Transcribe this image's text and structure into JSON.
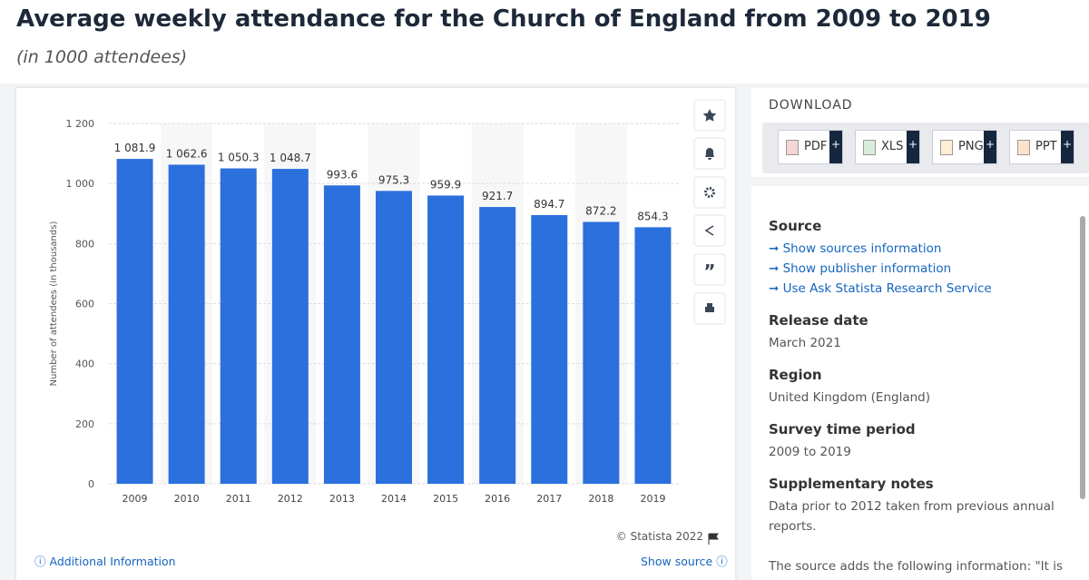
{
  "header": {
    "title": "Average weekly attendance for the Church of England from 2009 to 2019",
    "subtitle": "(in 1000 attendees)"
  },
  "chart_data": {
    "type": "bar",
    "y_label": "Number of attendees (in thousands)",
    "categories": [
      "2009",
      "2010",
      "2011",
      "2012",
      "2013",
      "2014",
      "2015",
      "2016",
      "2017",
      "2018",
      "2019"
    ],
    "values": [
      1081.9,
      1062.6,
      1050.3,
      1048.7,
      993.6,
      975.3,
      959.9,
      921.7,
      894.7,
      872.2,
      854.3
    ],
    "value_labels": [
      "1 081.9",
      "1 062.6",
      "1 050.3",
      "1 048.7",
      "993.6",
      "975.3",
      "959.9",
      "921.7",
      "894.7",
      "872.2",
      "854.3"
    ],
    "color": "#2b70dd",
    "ylim": [
      0,
      1200
    ],
    "yticks": [
      0,
      200,
      400,
      600,
      800,
      {
        "value": 1000,
        "label": "1 000"
      },
      {
        "value": 1200,
        "label": "1 200"
      }
    ],
    "grid": true,
    "credit": "© Statista 2022"
  },
  "footer": {
    "left": "Additional Information",
    "right": "Show source"
  },
  "download": {
    "title": "DOWNLOAD",
    "buttons": [
      "PDF",
      "XLS",
      "PNG",
      "PPT"
    ]
  },
  "details": [
    {
      "heading": "Source",
      "links": [
        "Show sources information",
        "Show publisher information",
        "Use Ask Statista Research Service"
      ]
    },
    {
      "heading": "Release date",
      "lines": [
        "March 2021"
      ]
    },
    {
      "heading": "Region",
      "lines": [
        "United Kingdom (England)"
      ]
    },
    {
      "heading": "Survey time period",
      "lines": [
        "2009 to 2019"
      ]
    },
    {
      "heading": "Supplementary notes",
      "lines": [
        "Data prior to 2012 taken from previous annual reports.",
        "The source adds the following information: \"It is"
      ]
    }
  ]
}
